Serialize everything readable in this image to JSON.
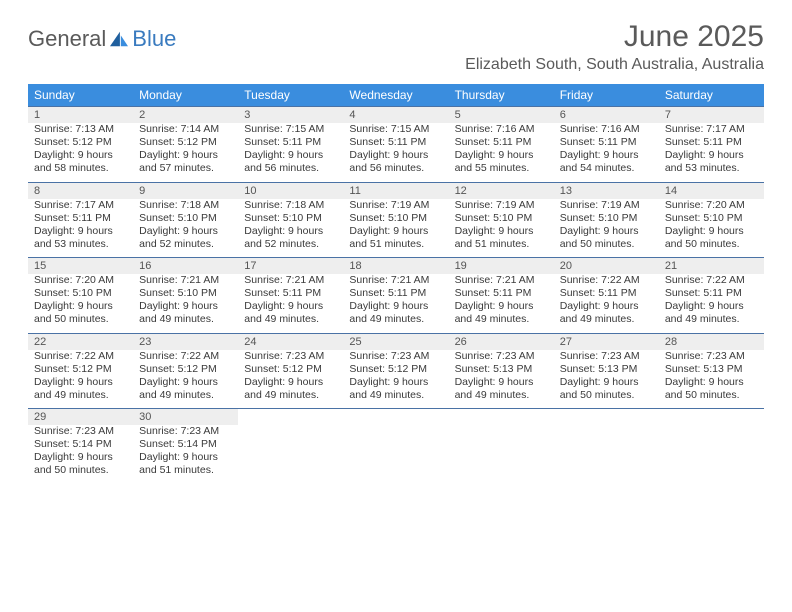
{
  "brand": {
    "general": "General",
    "blue": "Blue"
  },
  "title": "June 2025",
  "location": "Elizabeth South, South Australia, Australia",
  "colors": {
    "header_bg": "#3a8dde",
    "header_text": "#ffffff",
    "daynum_bg": "#eeeeee",
    "daynum_border": "#4a72a5",
    "text": "#3a3a3a",
    "title_color": "#5a5a5a",
    "brand_blue": "#3a7bbf"
  },
  "typography": {
    "title_fontsize": 30,
    "location_fontsize": 16,
    "header_fontsize": 12,
    "body_fontsize": 10.5,
    "font_family": "Arial"
  },
  "day_headers": [
    "Sunday",
    "Monday",
    "Tuesday",
    "Wednesday",
    "Thursday",
    "Friday",
    "Saturday"
  ],
  "weeks": [
    [
      {
        "num": "1",
        "sunrise": "Sunrise: 7:13 AM",
        "sunset": "Sunset: 5:12 PM",
        "day1": "Daylight: 9 hours",
        "day2": "and 58 minutes."
      },
      {
        "num": "2",
        "sunrise": "Sunrise: 7:14 AM",
        "sunset": "Sunset: 5:12 PM",
        "day1": "Daylight: 9 hours",
        "day2": "and 57 minutes."
      },
      {
        "num": "3",
        "sunrise": "Sunrise: 7:15 AM",
        "sunset": "Sunset: 5:11 PM",
        "day1": "Daylight: 9 hours",
        "day2": "and 56 minutes."
      },
      {
        "num": "4",
        "sunrise": "Sunrise: 7:15 AM",
        "sunset": "Sunset: 5:11 PM",
        "day1": "Daylight: 9 hours",
        "day2": "and 56 minutes."
      },
      {
        "num": "5",
        "sunrise": "Sunrise: 7:16 AM",
        "sunset": "Sunset: 5:11 PM",
        "day1": "Daylight: 9 hours",
        "day2": "and 55 minutes."
      },
      {
        "num": "6",
        "sunrise": "Sunrise: 7:16 AM",
        "sunset": "Sunset: 5:11 PM",
        "day1": "Daylight: 9 hours",
        "day2": "and 54 minutes."
      },
      {
        "num": "7",
        "sunrise": "Sunrise: 7:17 AM",
        "sunset": "Sunset: 5:11 PM",
        "day1": "Daylight: 9 hours",
        "day2": "and 53 minutes."
      }
    ],
    [
      {
        "num": "8",
        "sunrise": "Sunrise: 7:17 AM",
        "sunset": "Sunset: 5:11 PM",
        "day1": "Daylight: 9 hours",
        "day2": "and 53 minutes."
      },
      {
        "num": "9",
        "sunrise": "Sunrise: 7:18 AM",
        "sunset": "Sunset: 5:10 PM",
        "day1": "Daylight: 9 hours",
        "day2": "and 52 minutes."
      },
      {
        "num": "10",
        "sunrise": "Sunrise: 7:18 AM",
        "sunset": "Sunset: 5:10 PM",
        "day1": "Daylight: 9 hours",
        "day2": "and 52 minutes."
      },
      {
        "num": "11",
        "sunrise": "Sunrise: 7:19 AM",
        "sunset": "Sunset: 5:10 PM",
        "day1": "Daylight: 9 hours",
        "day2": "and 51 minutes."
      },
      {
        "num": "12",
        "sunrise": "Sunrise: 7:19 AM",
        "sunset": "Sunset: 5:10 PM",
        "day1": "Daylight: 9 hours",
        "day2": "and 51 minutes."
      },
      {
        "num": "13",
        "sunrise": "Sunrise: 7:19 AM",
        "sunset": "Sunset: 5:10 PM",
        "day1": "Daylight: 9 hours",
        "day2": "and 50 minutes."
      },
      {
        "num": "14",
        "sunrise": "Sunrise: 7:20 AM",
        "sunset": "Sunset: 5:10 PM",
        "day1": "Daylight: 9 hours",
        "day2": "and 50 minutes."
      }
    ],
    [
      {
        "num": "15",
        "sunrise": "Sunrise: 7:20 AM",
        "sunset": "Sunset: 5:10 PM",
        "day1": "Daylight: 9 hours",
        "day2": "and 50 minutes."
      },
      {
        "num": "16",
        "sunrise": "Sunrise: 7:21 AM",
        "sunset": "Sunset: 5:10 PM",
        "day1": "Daylight: 9 hours",
        "day2": "and 49 minutes."
      },
      {
        "num": "17",
        "sunrise": "Sunrise: 7:21 AM",
        "sunset": "Sunset: 5:11 PM",
        "day1": "Daylight: 9 hours",
        "day2": "and 49 minutes."
      },
      {
        "num": "18",
        "sunrise": "Sunrise: 7:21 AM",
        "sunset": "Sunset: 5:11 PM",
        "day1": "Daylight: 9 hours",
        "day2": "and 49 minutes."
      },
      {
        "num": "19",
        "sunrise": "Sunrise: 7:21 AM",
        "sunset": "Sunset: 5:11 PM",
        "day1": "Daylight: 9 hours",
        "day2": "and 49 minutes."
      },
      {
        "num": "20",
        "sunrise": "Sunrise: 7:22 AM",
        "sunset": "Sunset: 5:11 PM",
        "day1": "Daylight: 9 hours",
        "day2": "and 49 minutes."
      },
      {
        "num": "21",
        "sunrise": "Sunrise: 7:22 AM",
        "sunset": "Sunset: 5:11 PM",
        "day1": "Daylight: 9 hours",
        "day2": "and 49 minutes."
      }
    ],
    [
      {
        "num": "22",
        "sunrise": "Sunrise: 7:22 AM",
        "sunset": "Sunset: 5:12 PM",
        "day1": "Daylight: 9 hours",
        "day2": "and 49 minutes."
      },
      {
        "num": "23",
        "sunrise": "Sunrise: 7:22 AM",
        "sunset": "Sunset: 5:12 PM",
        "day1": "Daylight: 9 hours",
        "day2": "and 49 minutes."
      },
      {
        "num": "24",
        "sunrise": "Sunrise: 7:23 AM",
        "sunset": "Sunset: 5:12 PM",
        "day1": "Daylight: 9 hours",
        "day2": "and 49 minutes."
      },
      {
        "num": "25",
        "sunrise": "Sunrise: 7:23 AM",
        "sunset": "Sunset: 5:12 PM",
        "day1": "Daylight: 9 hours",
        "day2": "and 49 minutes."
      },
      {
        "num": "26",
        "sunrise": "Sunrise: 7:23 AM",
        "sunset": "Sunset: 5:13 PM",
        "day1": "Daylight: 9 hours",
        "day2": "and 49 minutes."
      },
      {
        "num": "27",
        "sunrise": "Sunrise: 7:23 AM",
        "sunset": "Sunset: 5:13 PM",
        "day1": "Daylight: 9 hours",
        "day2": "and 50 minutes."
      },
      {
        "num": "28",
        "sunrise": "Sunrise: 7:23 AM",
        "sunset": "Sunset: 5:13 PM",
        "day1": "Daylight: 9 hours",
        "day2": "and 50 minutes."
      }
    ],
    [
      {
        "num": "29",
        "sunrise": "Sunrise: 7:23 AM",
        "sunset": "Sunset: 5:14 PM",
        "day1": "Daylight: 9 hours",
        "day2": "and 50 minutes."
      },
      {
        "num": "30",
        "sunrise": "Sunrise: 7:23 AM",
        "sunset": "Sunset: 5:14 PM",
        "day1": "Daylight: 9 hours",
        "day2": "and 51 minutes."
      },
      null,
      null,
      null,
      null,
      null
    ]
  ]
}
